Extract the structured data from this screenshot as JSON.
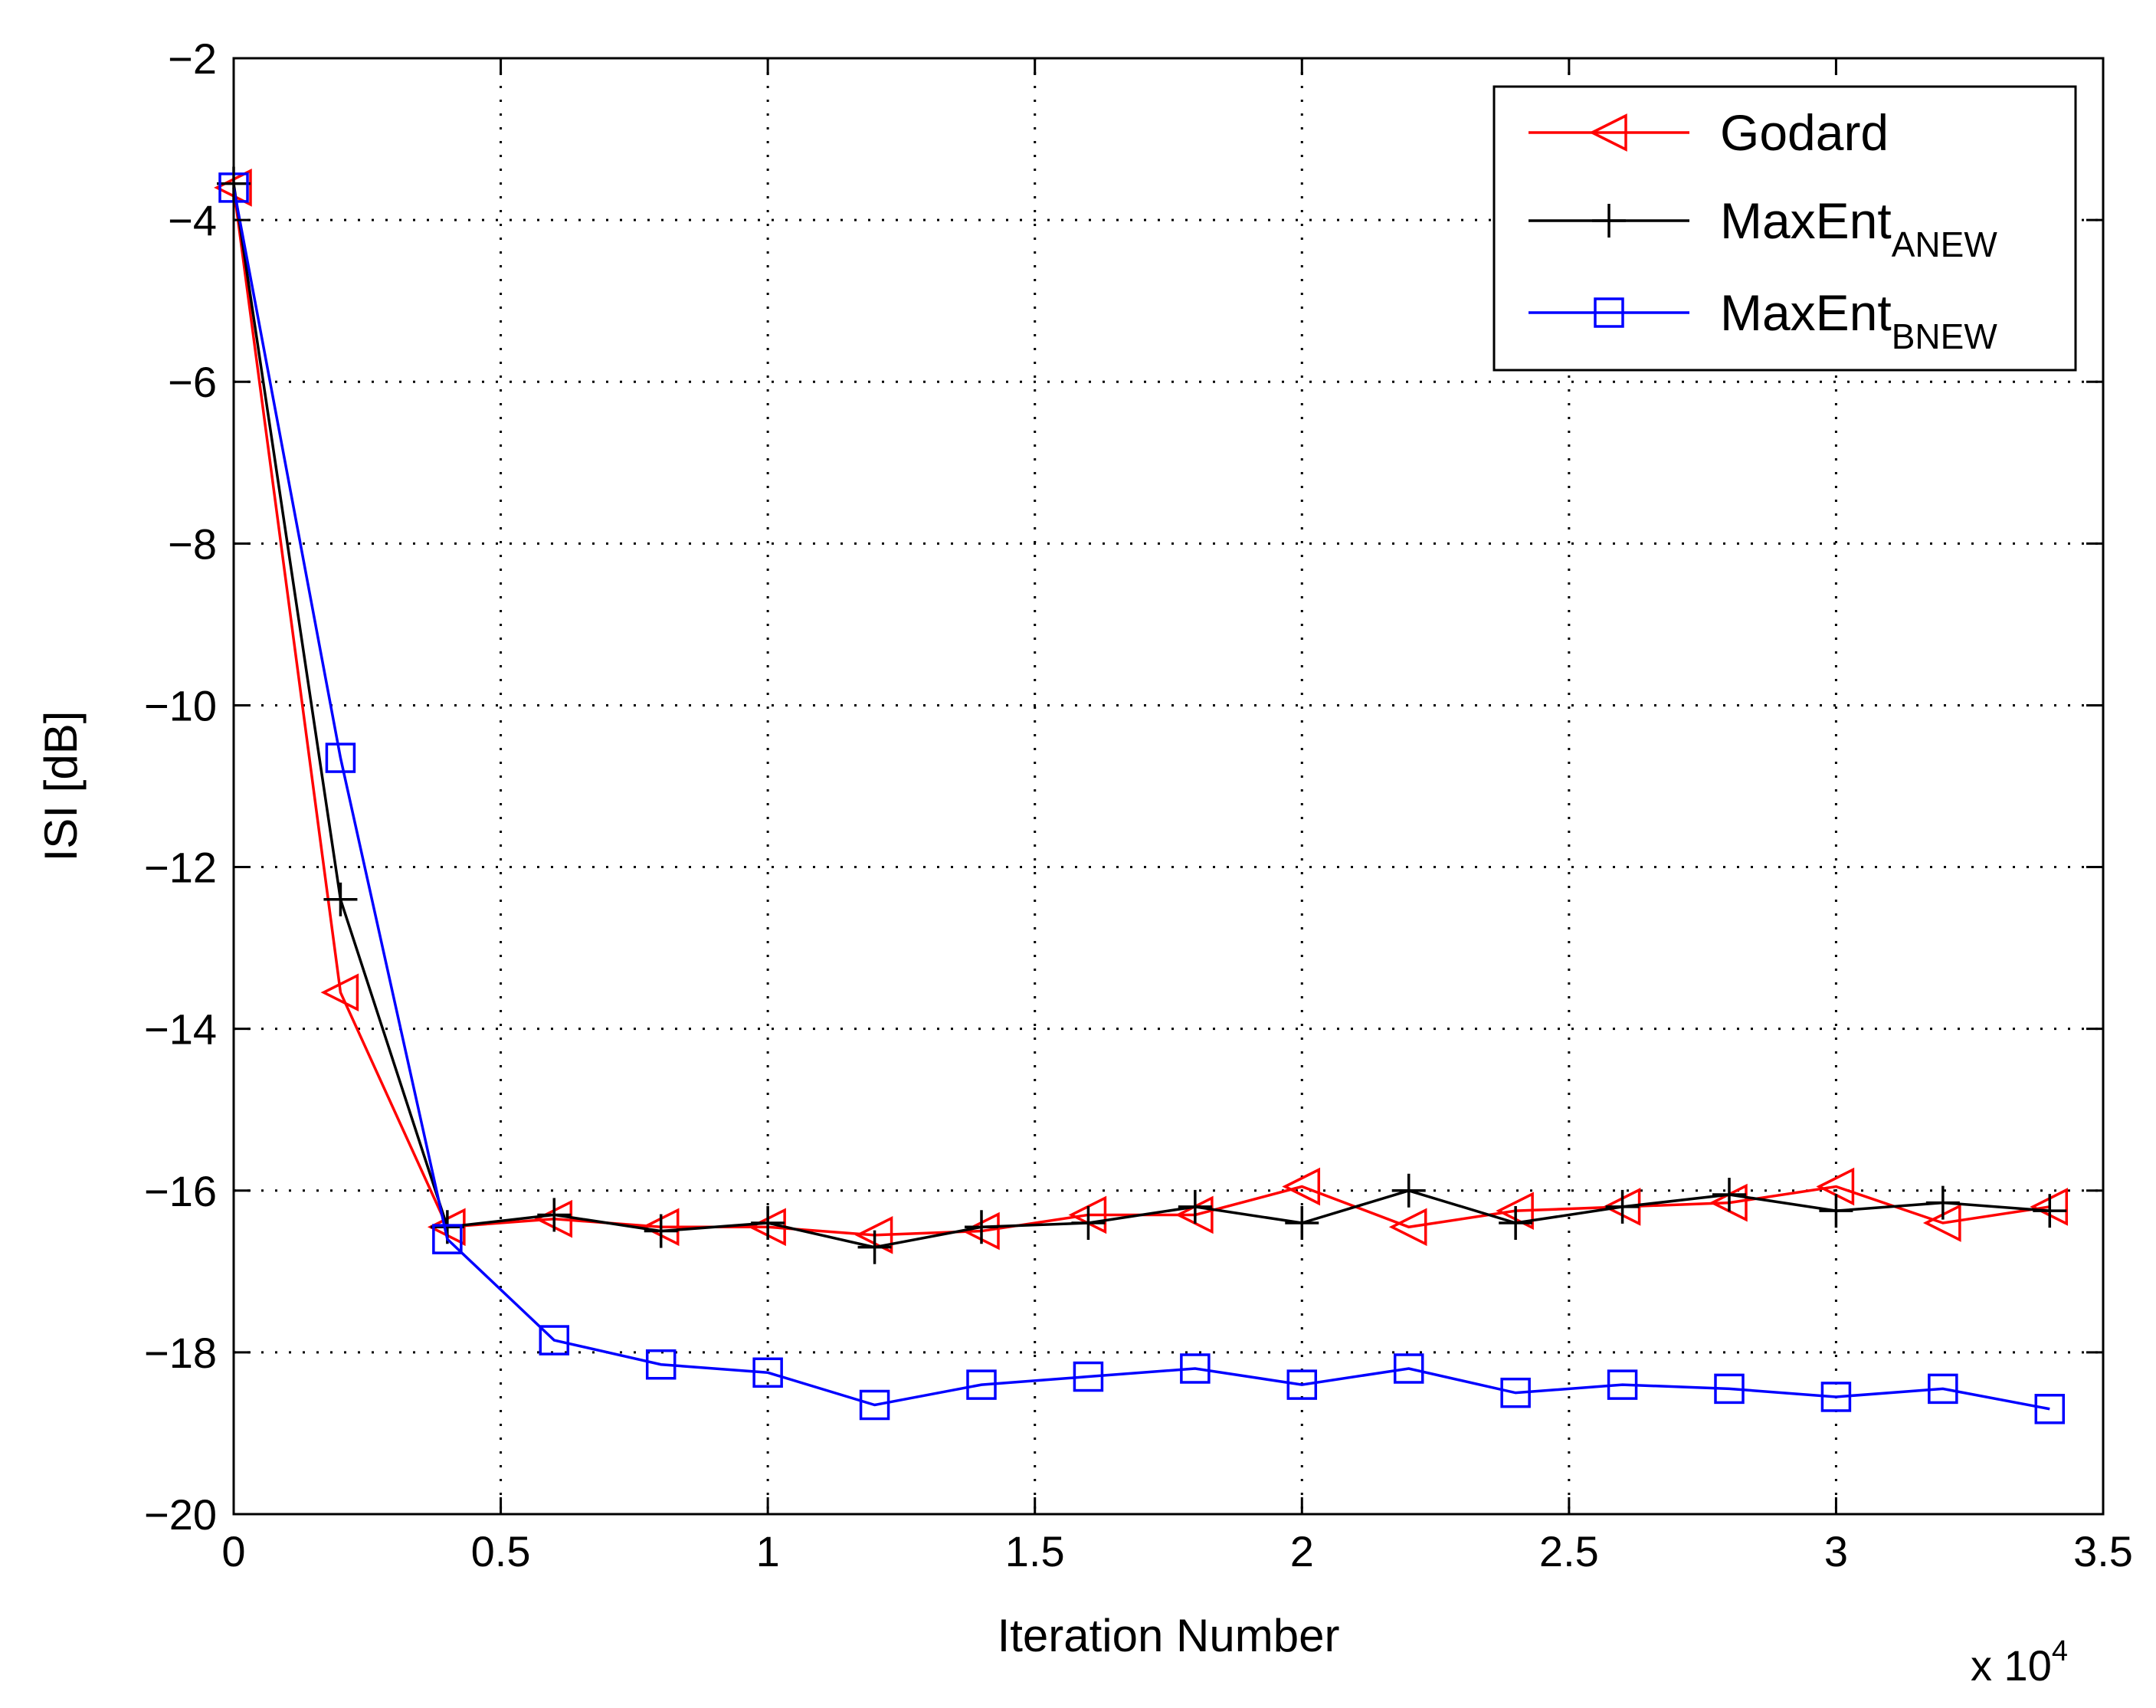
{
  "chart_data": {
    "type": "line",
    "xlabel": "Iteration Number",
    "ylabel": "ISI [dB]",
    "xlim": [
      0,
      35000
    ],
    "ylim": [
      -20,
      -2
    ],
    "x_ticks": [
      0,
      5000,
      10000,
      15000,
      20000,
      25000,
      30000,
      35000
    ],
    "x_tick_labels": [
      "0",
      "0.5",
      "1",
      "1.5",
      "2",
      "2.5",
      "3",
      "3.5"
    ],
    "y_ticks": [
      -20,
      -18,
      -16,
      -14,
      -12,
      -10,
      -8,
      -6,
      -4,
      -2
    ],
    "y_tick_labels": [
      "−20",
      "−18",
      "−16",
      "−14",
      "−12",
      "−10",
      "−8",
      "−6",
      "−4",
      "−2"
    ],
    "x_exponent": {
      "base": "x 10",
      "power": "4"
    },
    "grid": true,
    "legend_position": "top-right",
    "x": [
      0,
      2000,
      4000,
      6000,
      8000,
      10000,
      12000,
      14000,
      16000,
      18000,
      20000,
      22000,
      24000,
      26000,
      28000,
      30000,
      32000,
      34000
    ],
    "series": [
      {
        "name": "Godard",
        "name_sub": "",
        "color": "#ff0000",
        "marker": "triangle-left",
        "values": [
          -3.6,
          -13.55,
          -16.45,
          -16.35,
          -16.45,
          -16.45,
          -16.55,
          -16.5,
          -16.3,
          -16.3,
          -15.95,
          -16.45,
          -16.25,
          -16.2,
          -16.15,
          -15.95,
          -16.4,
          -16.2
        ]
      },
      {
        "name": "MaxEnt",
        "name_sub": "ANEW",
        "color": "#000000",
        "marker": "plus",
        "values": [
          -3.55,
          -12.4,
          -16.45,
          -16.3,
          -16.5,
          -16.4,
          -16.7,
          -16.45,
          -16.4,
          -16.2,
          -16.4,
          -16.0,
          -16.4,
          -16.2,
          -16.05,
          -16.25,
          -16.15,
          -16.25
        ]
      },
      {
        "name": "MaxEnt",
        "name_sub": "BNEW",
        "color": "#0000ff",
        "marker": "square",
        "values": [
          -3.6,
          -10.65,
          -16.6,
          -17.85,
          -18.15,
          -18.25,
          -18.65,
          -18.4,
          -18.3,
          -18.2,
          -18.4,
          -18.2,
          -18.5,
          -18.4,
          -18.45,
          -18.55,
          -18.45,
          -18.7
        ]
      }
    ]
  }
}
